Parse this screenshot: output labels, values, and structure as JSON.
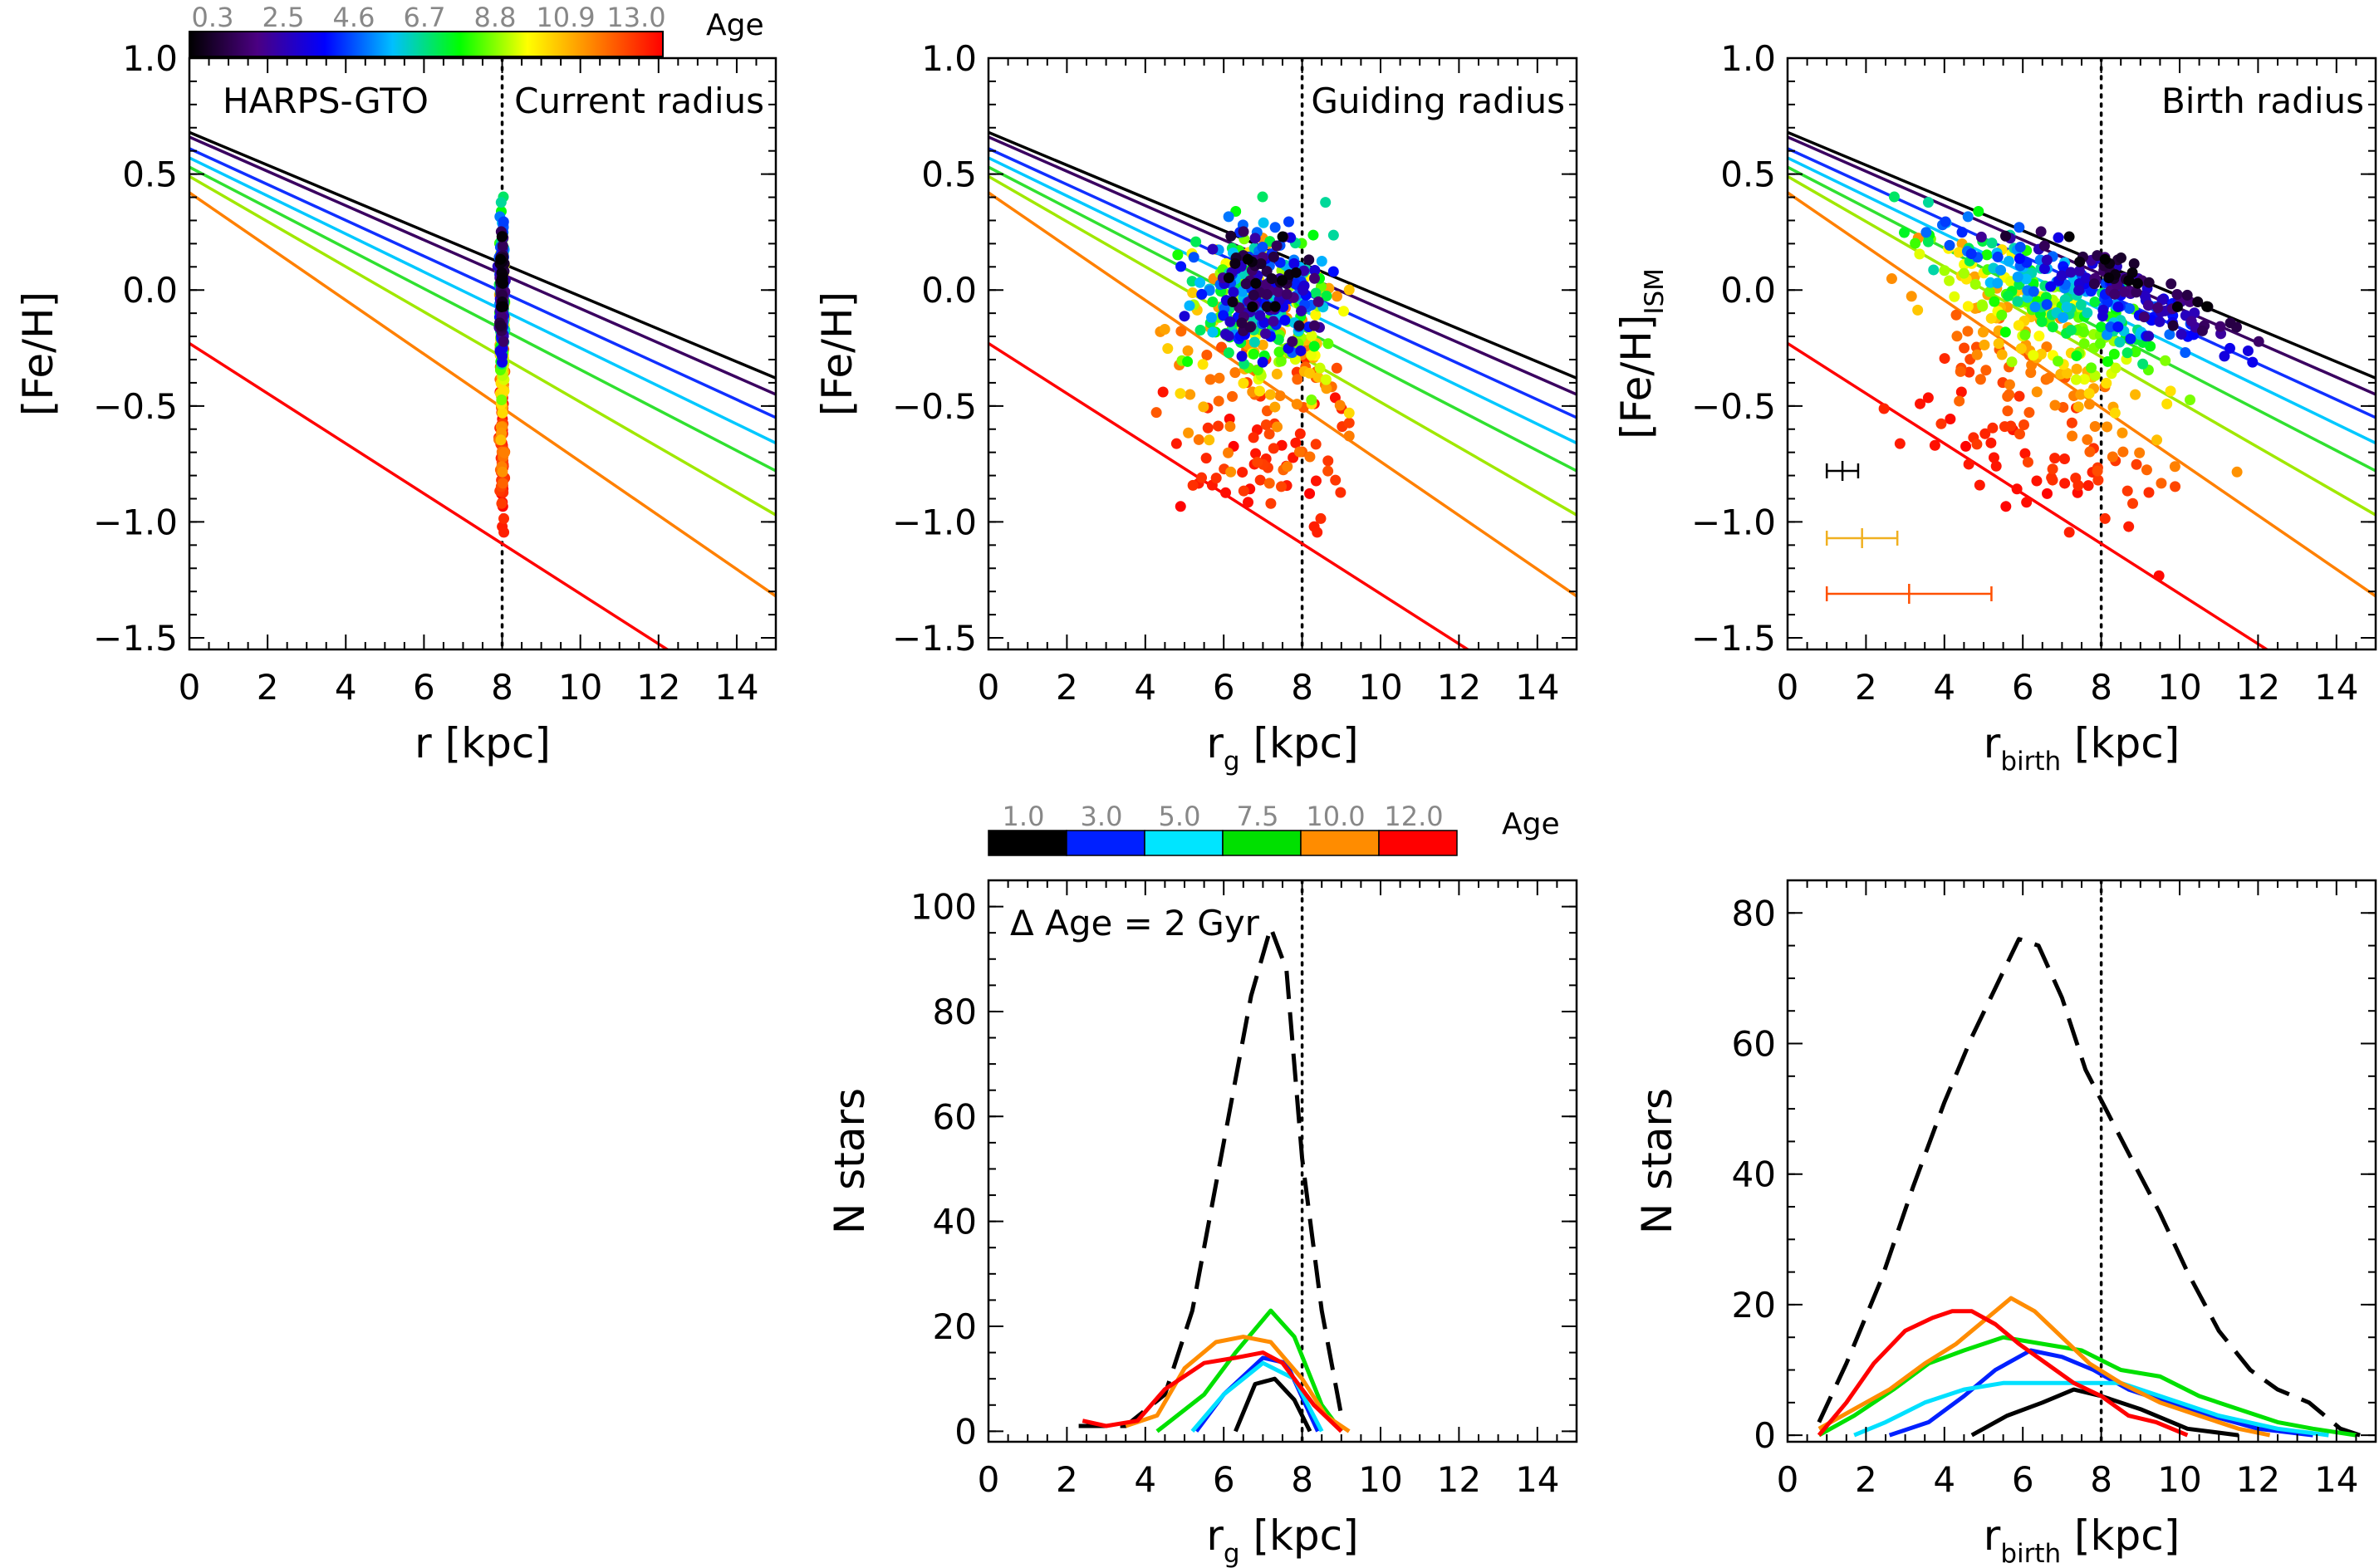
{
  "colors": {
    "age_lines": [
      "#000000",
      "#3a0060",
      "#1030ff",
      "#00c8ff",
      "#30e030",
      "#a0e800",
      "#ff8000",
      "#ff0000"
    ],
    "hist": {
      "1.0": "#000000",
      "3.0": "#0020ff",
      "5.0": "#00e0ff",
      "7.5": "#00e000",
      "10.0": "#ff8c00",
      "12.0": "#ff0000",
      "total": "#000000"
    }
  },
  "colorbar_top": {
    "labels": [
      "0.3",
      "2.5",
      "4.6",
      "6.7",
      "8.8",
      "10.9",
      "13.0"
    ],
    "title": "Age",
    "colors": [
      "#000000",
      "#4b0082",
      "#0000ff",
      "#00bfff",
      "#00ff00",
      "#ffff00",
      "#ff8000",
      "#ff0000"
    ]
  },
  "colorbar_bottom": {
    "labels": [
      "1.0",
      "3.0",
      "5.0",
      "7.5",
      "10.0",
      "12.0"
    ],
    "title": "Age",
    "colors": [
      "#000000",
      "#0020ff",
      "#00e5ff",
      "#00e000",
      "#ff8c00",
      "#ff0000"
    ]
  },
  "chart_data": [
    {
      "type": "scatter",
      "id": "panel1",
      "label_left": "HARPS-GTO",
      "label_right": "Current radius",
      "xlabel": "r  [kpc]",
      "ylabel": "[Fe/H]",
      "xlim": [
        0,
        15
      ],
      "ylim": [
        -1.55,
        1.0
      ],
      "xticks": [
        "0",
        "2",
        "4",
        "6",
        "8",
        "10",
        "12",
        "14"
      ],
      "yticks": [
        "1.0",
        "0.5",
        "0.0",
        "−0.5",
        "−1.0",
        "−1.5"
      ],
      "vline": 8,
      "lines": [
        {
          "y0": 0.68,
          "y1": -0.38
        },
        {
          "y0": 0.66,
          "y1": -0.45
        },
        {
          "y0": 0.61,
          "y1": -0.55
        },
        {
          "y0": 0.57,
          "y1": -0.66
        },
        {
          "y0": 0.53,
          "y1": -0.78
        },
        {
          "y0": 0.49,
          "y1": -0.97
        },
        {
          "y0": 0.42,
          "y1": -1.32
        },
        {
          "y0": -0.23,
          "y1": -1.85
        }
      ]
    },
    {
      "type": "scatter",
      "id": "panel2",
      "label_right": "Guiding radius",
      "xlabel": "r_g  [kpc]",
      "ylabel": "[Fe/H]",
      "xlim": [
        0,
        15
      ],
      "ylim": [
        -1.55,
        1.0
      ],
      "xticks": [
        "0",
        "2",
        "4",
        "6",
        "8",
        "10",
        "12",
        "14"
      ],
      "yticks": [
        "1.0",
        "0.5",
        "0.0",
        "−0.5",
        "−1.0",
        "−1.5"
      ],
      "vline": 8,
      "lines": "same as panel1"
    },
    {
      "type": "scatter",
      "id": "panel3",
      "label_right": "Birth radius",
      "xlabel": "r_birth  [kpc]",
      "ylabel": "[Fe/H]_ISM",
      "xlim": [
        0,
        15
      ],
      "ylim": [
        -1.55,
        1.0
      ],
      "xticks": [
        "0",
        "2",
        "4",
        "6",
        "8",
        "10",
        "12",
        "14"
      ],
      "yticks": [
        "1.0",
        "0.5",
        "0.0",
        "−0.5",
        "−1.0",
        "−1.5"
      ],
      "vline": 8,
      "error_bars": [
        {
          "x": 1.4,
          "y": -0.78,
          "xerr": 0.4,
          "color": "#000000"
        },
        {
          "x": 1.9,
          "y": -1.07,
          "xerr": 0.9,
          "color": "#f0b020"
        },
        {
          "x": 3.1,
          "y": -1.31,
          "xerr": 2.1,
          "color": "#ff5000"
        }
      ]
    },
    {
      "type": "line",
      "id": "panel4",
      "label": "Δ Age = 2 Gyr",
      "xlabel": "r_g  [kpc]",
      "ylabel": "N  stars",
      "xlim": [
        0,
        15
      ],
      "ylim": [
        -2,
        105
      ],
      "xticks": [
        "0",
        "2",
        "4",
        "6",
        "8",
        "10",
        "12",
        "14"
      ],
      "yticks": [
        "0",
        "20",
        "40",
        "60",
        "80",
        "100"
      ],
      "vline": 8,
      "series": [
        {
          "name": "total",
          "dashed": true,
          "x": [
            2.3,
            3.5,
            4.5,
            5.2,
            6.0,
            6.7,
            7.2,
            7.6,
            8.0,
            8.5,
            9.0
          ],
          "y": [
            1,
            1,
            7,
            23,
            55,
            83,
            96,
            88,
            52,
            23,
            3
          ]
        },
        {
          "name": "1.0",
          "x": [
            6.3,
            6.8,
            7.3,
            7.8,
            8.2
          ],
          "y": [
            0,
            9,
            10,
            6,
            0
          ]
        },
        {
          "name": "3.0",
          "x": [
            5.3,
            6.0,
            7.0,
            7.6,
            8.4
          ],
          "y": [
            0,
            7,
            14,
            13,
            0
          ]
        },
        {
          "name": "5.0",
          "x": [
            5.2,
            6.0,
            7.0,
            7.8,
            8.5
          ],
          "y": [
            0,
            7,
            13,
            10,
            0
          ]
        },
        {
          "name": "7.5",
          "x": [
            4.3,
            5.5,
            6.3,
            7.2,
            7.8,
            8.5,
            9.0
          ],
          "y": [
            0,
            7,
            15,
            23,
            18,
            5,
            0
          ]
        },
        {
          "name": "10.0",
          "x": [
            3.5,
            4.3,
            5.0,
            5.8,
            6.5,
            7.2,
            8.0,
            8.6,
            9.2
          ],
          "y": [
            1,
            3,
            12,
            17,
            18,
            17,
            10,
            3,
            0
          ]
        },
        {
          "name": "12.0",
          "x": [
            2.4,
            3.0,
            3.8,
            4.5,
            5.5,
            6.3,
            7.0,
            7.5,
            8.3,
            9.0
          ],
          "y": [
            2,
            1,
            2,
            8,
            13,
            14,
            15,
            13,
            5,
            0
          ]
        }
      ]
    },
    {
      "type": "line",
      "id": "panel5",
      "xlabel": "r_birth  [kpc]",
      "ylabel": "N  stars",
      "xlim": [
        0,
        15
      ],
      "ylim": [
        -1,
        85
      ],
      "xticks": [
        "0",
        "2",
        "4",
        "6",
        "8",
        "10",
        "12",
        "14"
      ],
      "yticks": [
        "0",
        "20",
        "40",
        "60",
        "80"
      ],
      "vline": 8,
      "series": [
        {
          "name": "total",
          "dashed": true,
          "x": [
            0.8,
            1.5,
            2.4,
            3.2,
            4.0,
            4.7,
            5.5,
            5.9,
            6.4,
            7.0,
            7.6,
            8.2,
            8.8,
            9.5,
            10.2,
            11.0,
            11.8,
            12.5,
            13.3,
            14.1,
            14.6
          ],
          "y": [
            2,
            11,
            24,
            38,
            51,
            61,
            71,
            76,
            75,
            67,
            56,
            49,
            42,
            34,
            25,
            16,
            10,
            7,
            5,
            1,
            0
          ]
        },
        {
          "name": "1.0",
          "x": [
            4.7,
            5.6,
            6.5,
            7.3,
            8.0,
            9.0,
            10.2,
            11.5
          ],
          "y": [
            0,
            3,
            5,
            7,
            6,
            4,
            1,
            0
          ]
        },
        {
          "name": "3.0",
          "x": [
            2.6,
            3.6,
            4.5,
            5.3,
            6.2,
            7.0,
            7.8,
            8.7,
            9.7,
            10.8,
            12.0,
            13.4
          ],
          "y": [
            0,
            2,
            6,
            10,
            13,
            12,
            10,
            7,
            5,
            3,
            1,
            0
          ]
        },
        {
          "name": "5.0",
          "x": [
            1.7,
            2.5,
            3.5,
            4.5,
            5.5,
            6.5,
            7.5,
            8.5,
            9.5,
            11.0,
            12.5,
            13.8
          ],
          "y": [
            0,
            2,
            5,
            7,
            8,
            8,
            8,
            8,
            6,
            3,
            1,
            0
          ]
        },
        {
          "name": "7.5",
          "x": [
            0.8,
            1.7,
            2.7,
            3.6,
            4.5,
            5.5,
            6.5,
            7.5,
            8.5,
            9.5,
            10.5,
            11.5,
            12.5,
            13.4,
            14.5
          ],
          "y": [
            0,
            3,
            7,
            11,
            13,
            15,
            14,
            13,
            10,
            9,
            6,
            4,
            2,
            1,
            0
          ]
        },
        {
          "name": "10.0",
          "x": [
            0.8,
            1.7,
            2.6,
            3.5,
            4.3,
            5.1,
            5.7,
            6.3,
            7.0,
            7.7,
            8.5,
            9.5,
            10.5,
            11.5,
            12.3
          ],
          "y": [
            1,
            4,
            7,
            11,
            14,
            18,
            21,
            19,
            15,
            11,
            8,
            5,
            3,
            1,
            0
          ]
        },
        {
          "name": "12.0",
          "x": [
            0.8,
            1.5,
            2.2,
            3.0,
            3.7,
            4.2,
            4.7,
            5.3,
            5.9,
            6.6,
            7.3,
            8.0,
            8.7,
            9.4,
            10.2
          ],
          "y": [
            0,
            5,
            11,
            16,
            18,
            19,
            19,
            17,
            14,
            11,
            8,
            6,
            3,
            2,
            0
          ]
        }
      ]
    }
  ]
}
